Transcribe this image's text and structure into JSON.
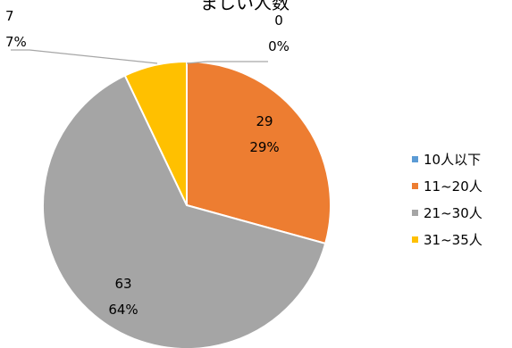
{
  "chart_data": {
    "type": "pie",
    "title": "ましい人数",
    "start_angle_deg": 0,
    "direction": "clockwise",
    "slices": [
      {
        "name": "10人以下",
        "value": 0,
        "percent": "0%",
        "color": "#5B9BD5"
      },
      {
        "name": "11~20人",
        "value": 29,
        "percent": "29%",
        "color": "#ED7D31"
      },
      {
        "name": "21~30人",
        "value": 63,
        "percent": "64%",
        "color": "#A5A5A5"
      },
      {
        "name": "31~35人",
        "value": 7,
        "percent": "7%",
        "color": "#FFC000"
      }
    ],
    "legend": {
      "position": "right"
    },
    "leader_line_color": "#A6A6A6",
    "slice_border_color": "#FFFFFF"
  }
}
